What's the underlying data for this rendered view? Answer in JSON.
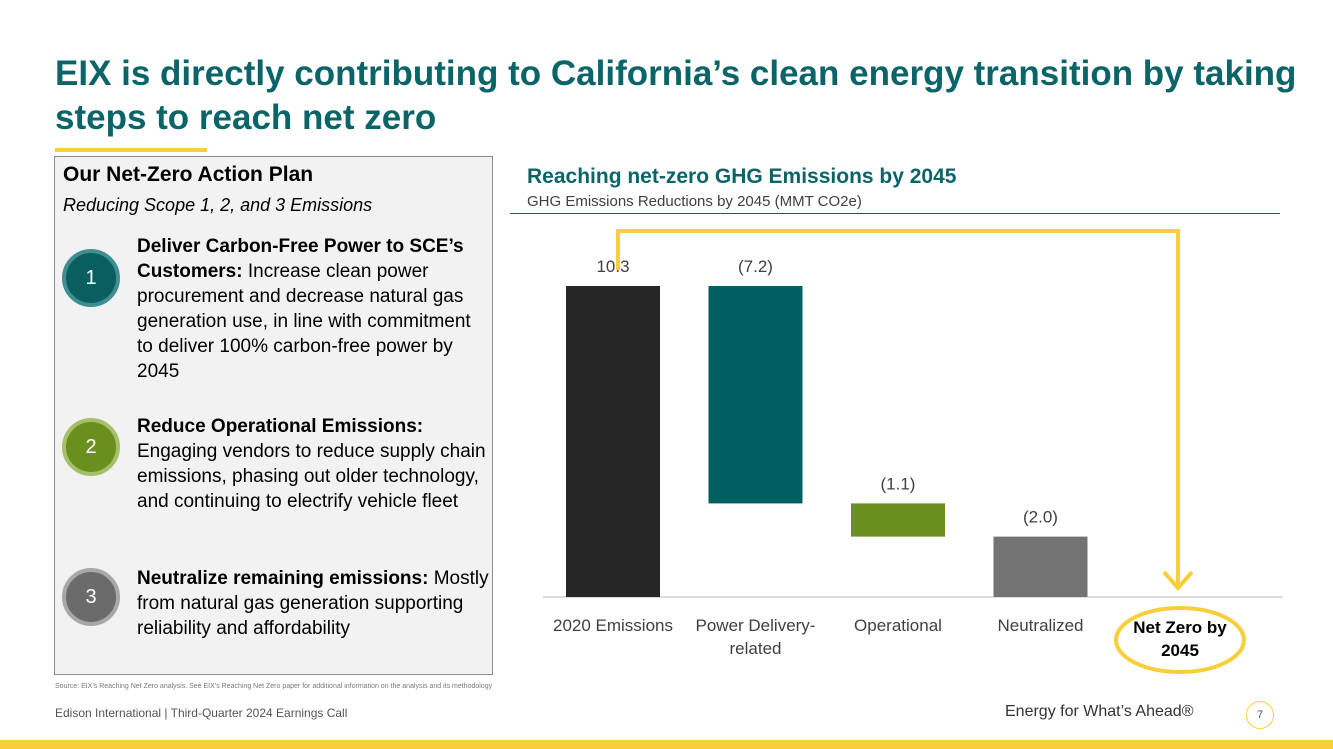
{
  "header": {
    "title": "EIX is directly contributing to California’s clean energy transition by taking steps to reach net zero"
  },
  "action_plan": {
    "title": "Our Net-Zero Action Plan",
    "subtitle": "Reducing Scope 1, 2, and 3 Emissions",
    "items": [
      {
        "number": "1",
        "heading": "Deliver Carbon-Free Power to SCE’s Customers:",
        "text": "Increase clean power procurement and decrease natural gas generation use, in line with commitment to deliver 100% carbon-free power by 2045"
      },
      {
        "number": "2",
        "heading": "Reduce Operational Emissions:",
        "text": "Engaging vendors to reduce supply chain emissions, phasing out older technology, and continuing to electrify vehicle fleet"
      },
      {
        "number": "3",
        "heading": "Neutralize remaining emissions:",
        "text": "Mostly from natural gas generation supporting reliability and affordability"
      }
    ]
  },
  "chart_data": {
    "type": "waterfall",
    "title": "Reaching net-zero GHG Emissions by 2045",
    "subtitle": "GHG Emissions Reductions by 2045 (MMT CO2e)",
    "categories": [
      "2020 Emissions",
      "Power Delivery-related",
      "Operational",
      "Neutralized"
    ],
    "values": [
      10.3,
      -7.2,
      -1.1,
      -2.0
    ],
    "value_labels": [
      "10.3",
      "(7.2)",
      "(1.1)",
      "(2.0)"
    ],
    "colors": [
      "#262626",
      "#005f61",
      "#6a8f1f",
      "#737373"
    ],
    "total_label": "Net Zero by 2045"
  },
  "footer": {
    "source": "Source: EIX’s Reaching Net Zero analysis. See EIX’s Reaching Net Zero paper for additional information on the analysis and its methodology",
    "company": "Edison International |  Third-Quarter 2024 Earnings Call",
    "tagline": "Energy for What’s Ahead®",
    "page": "7"
  }
}
